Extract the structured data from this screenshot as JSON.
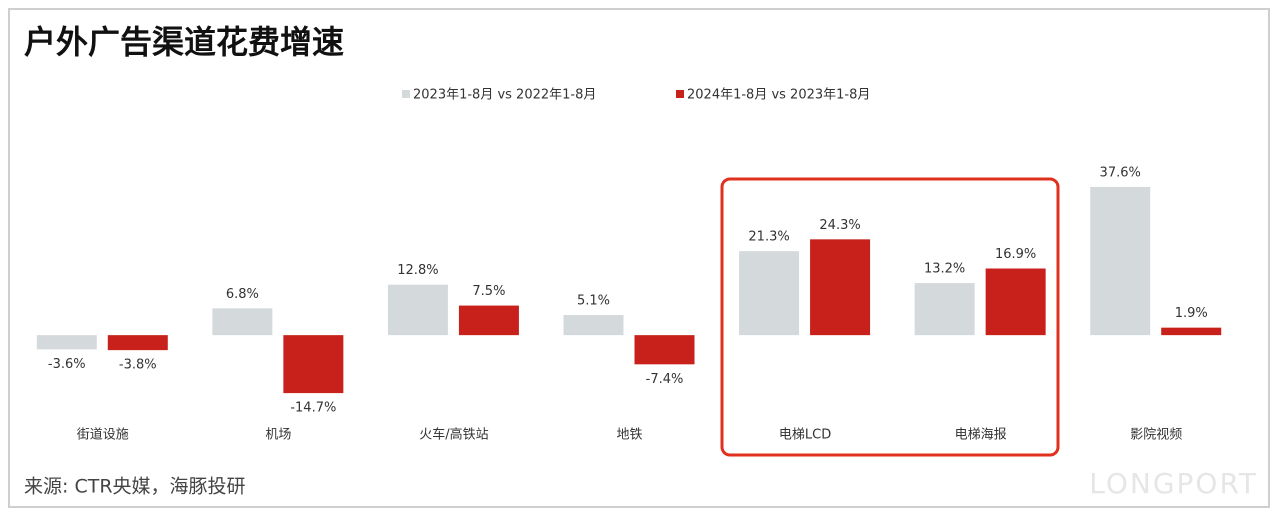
{
  "chart_data": {
    "type": "bar",
    "title": "户外广告渠道花费增速",
    "categories": [
      "街道设施",
      "机场",
      "火车/高铁站",
      "地铁",
      "电梯LCD",
      "电梯海报",
      "影院视频"
    ],
    "series": [
      {
        "name": "2023年1-8月 vs 2022年1-8月",
        "color": "#d4d9dc",
        "values": [
          -3.6,
          6.8,
          12.8,
          5.1,
          21.3,
          13.2,
          37.6
        ],
        "value_labels": [
          "-3.6%",
          "6.8%",
          "12.8%",
          "5.1%",
          "21.3%",
          "13.2%",
          "37.6%"
        ]
      },
      {
        "name": "2024年1-8月 vs 2023年1-8月",
        "color": "#c8201a",
        "values": [
          -3.8,
          -14.7,
          7.5,
          -7.4,
          24.3,
          16.9,
          1.9
        ],
        "value_labels": [
          "-3.8%",
          "-14.7%",
          "7.5%",
          "-7.4%",
          "24.3%",
          "16.9%",
          "1.9%"
        ]
      }
    ],
    "ylim": [
      -20,
      50
    ],
    "source": "来源: CTR央媒，海豚投研",
    "watermark": "LONGPORT"
  }
}
